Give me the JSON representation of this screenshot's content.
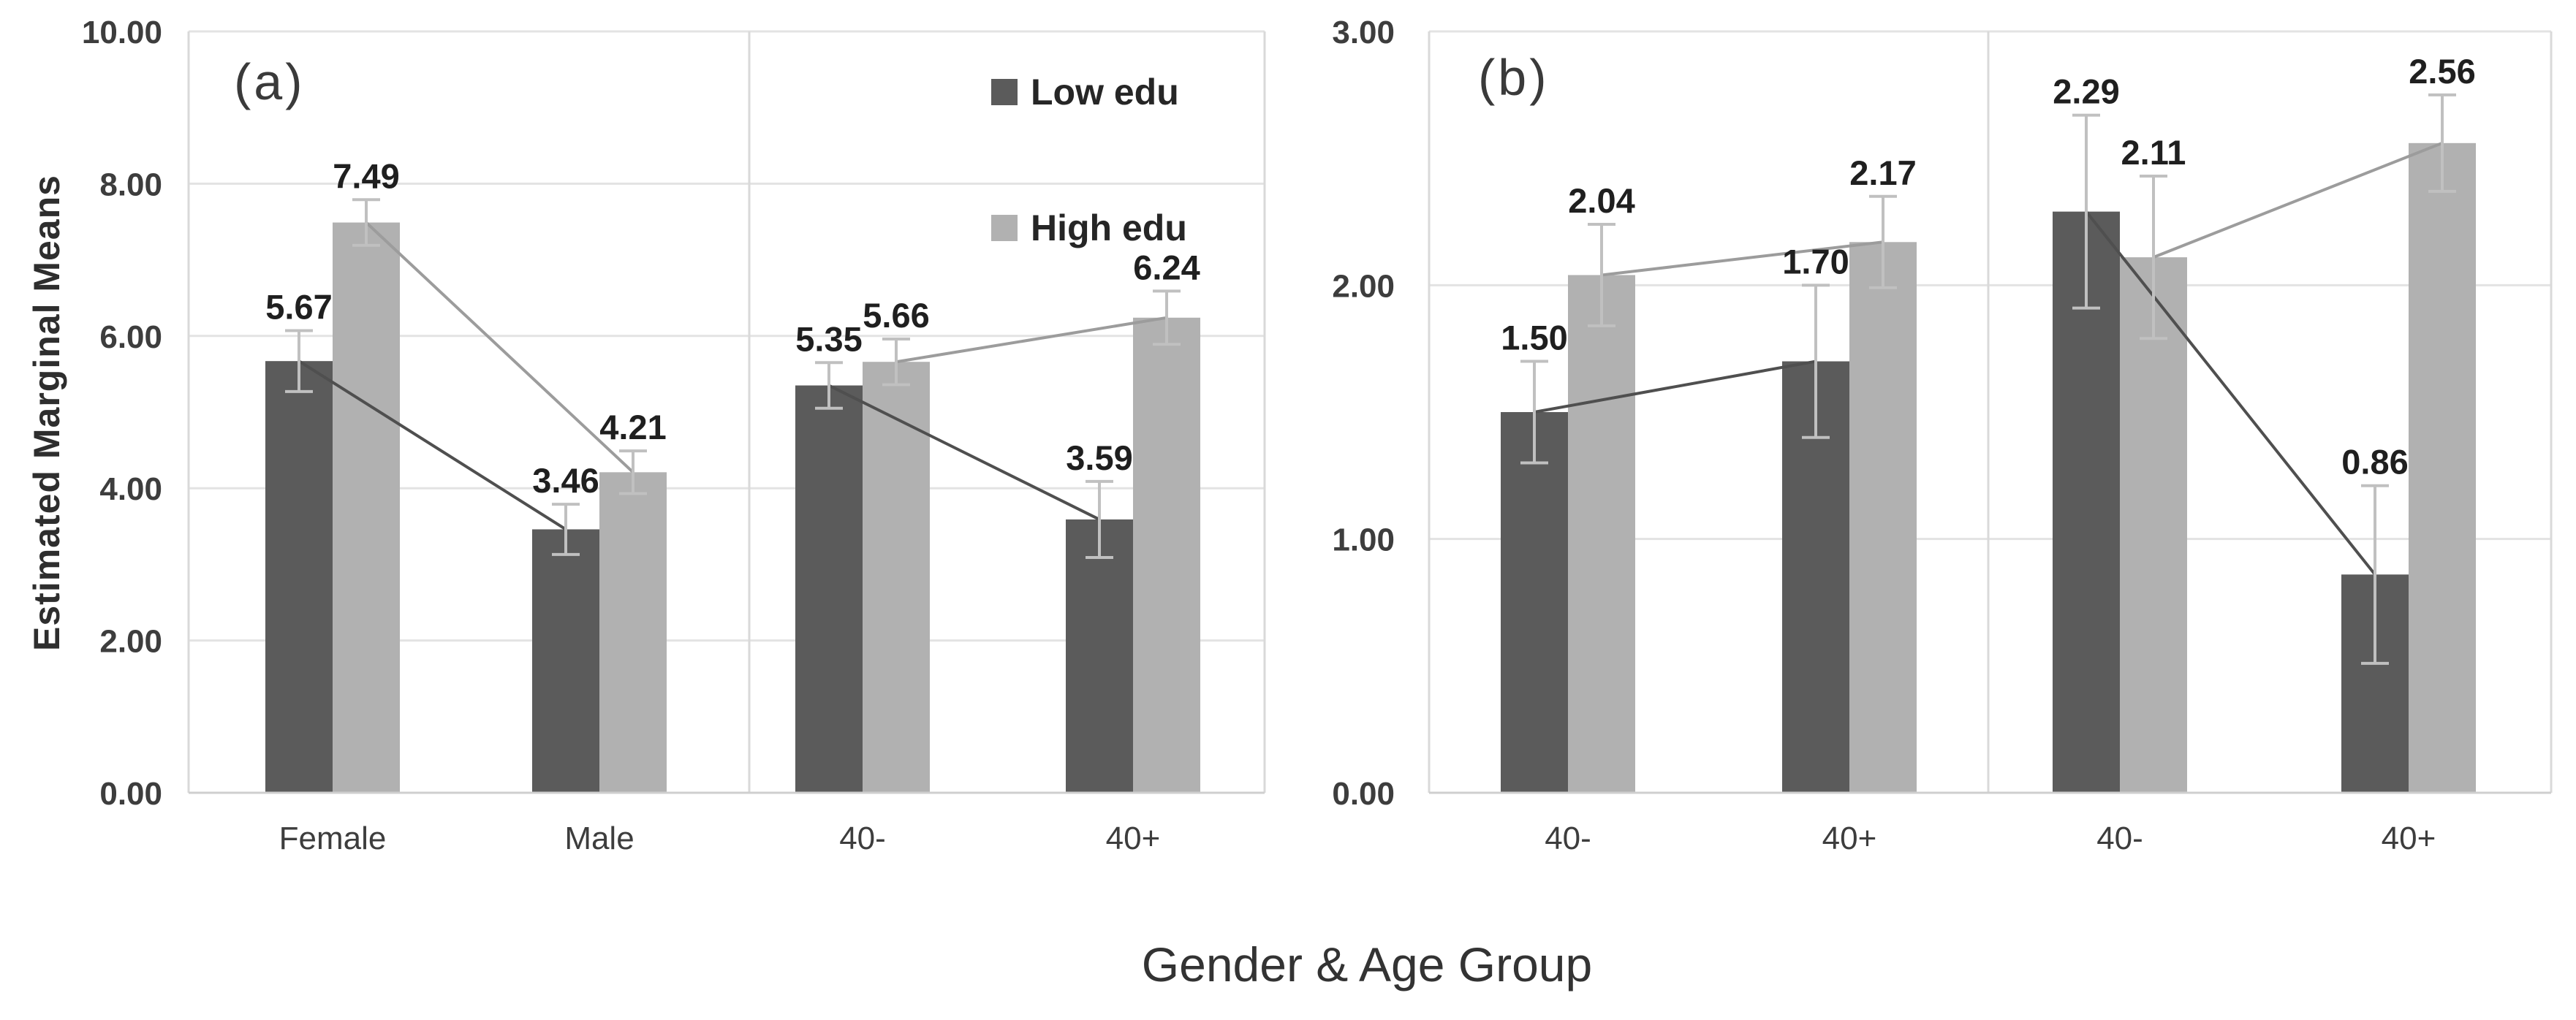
{
  "figure": {
    "y_axis_title": "Estimated Marginal Means",
    "x_axis_title": "Gender & Age Group"
  },
  "legend": {
    "position": "inside-panel-a-top-right",
    "items": [
      {
        "label": "Low edu",
        "color": "#5b5b5b"
      },
      {
        "label": "High edu",
        "color": "#b1b1b1"
      }
    ]
  },
  "colors": {
    "low_edu_bar": "#5b5b5b",
    "high_edu_bar": "#b1b1b1",
    "low_edu_line": "#4f4f4f",
    "high_edu_line": "#9c9c9c",
    "error_bar": "#c0c0c0",
    "gridline": "#e3e3e3",
    "plot_border": "#d9d9d9",
    "baseline": "#cfcfcf",
    "label_text": "#1f1f1f"
  },
  "chart_data": [
    {
      "type": "bar",
      "panel_label": "(a)",
      "ylabel": "Estimated Marginal Means",
      "ylim": [
        0,
        10
      ],
      "yticks": [
        10,
        8,
        6,
        4,
        2,
        0
      ],
      "grid": true,
      "error_bars": true,
      "sections": [
        {
          "categories": [
            "Female",
            "Male"
          ],
          "series": [
            {
              "name": "Low edu",
              "values": [
                5.67,
                3.46
              ],
              "errors": [
                0.4,
                0.33
              ]
            },
            {
              "name": "High edu",
              "values": [
                7.49,
                4.21
              ],
              "errors": [
                0.3,
                0.28
              ]
            }
          ]
        },
        {
          "categories": [
            "40-",
            "40+"
          ],
          "series": [
            {
              "name": "Low edu",
              "values": [
                5.35,
                3.59
              ],
              "errors": [
                0.3,
                0.5
              ]
            },
            {
              "name": "High edu",
              "values": [
                5.66,
                6.24
              ],
              "errors": [
                0.3,
                0.35
              ]
            }
          ]
        }
      ]
    },
    {
      "type": "bar",
      "panel_label": "(b)",
      "ylim": [
        0,
        3
      ],
      "yticks": [
        3,
        2,
        1,
        0
      ],
      "grid": true,
      "error_bars": true,
      "sections": [
        {
          "categories": [
            "40-",
            "40+"
          ],
          "series": [
            {
              "name": "Low edu",
              "values": [
                1.5,
                1.7
              ],
              "errors": [
                0.2,
                0.3
              ]
            },
            {
              "name": "High edu",
              "values": [
                2.04,
                2.17
              ],
              "errors": [
                0.2,
                0.18
              ]
            }
          ]
        },
        {
          "categories": [
            "40-",
            "40+"
          ],
          "series": [
            {
              "name": "Low edu",
              "values": [
                2.29,
                0.86
              ],
              "errors": [
                0.38,
                0.35
              ]
            },
            {
              "name": "High edu",
              "values": [
                2.11,
                2.56
              ],
              "errors": [
                0.32,
                0.19
              ]
            }
          ]
        }
      ]
    }
  ]
}
